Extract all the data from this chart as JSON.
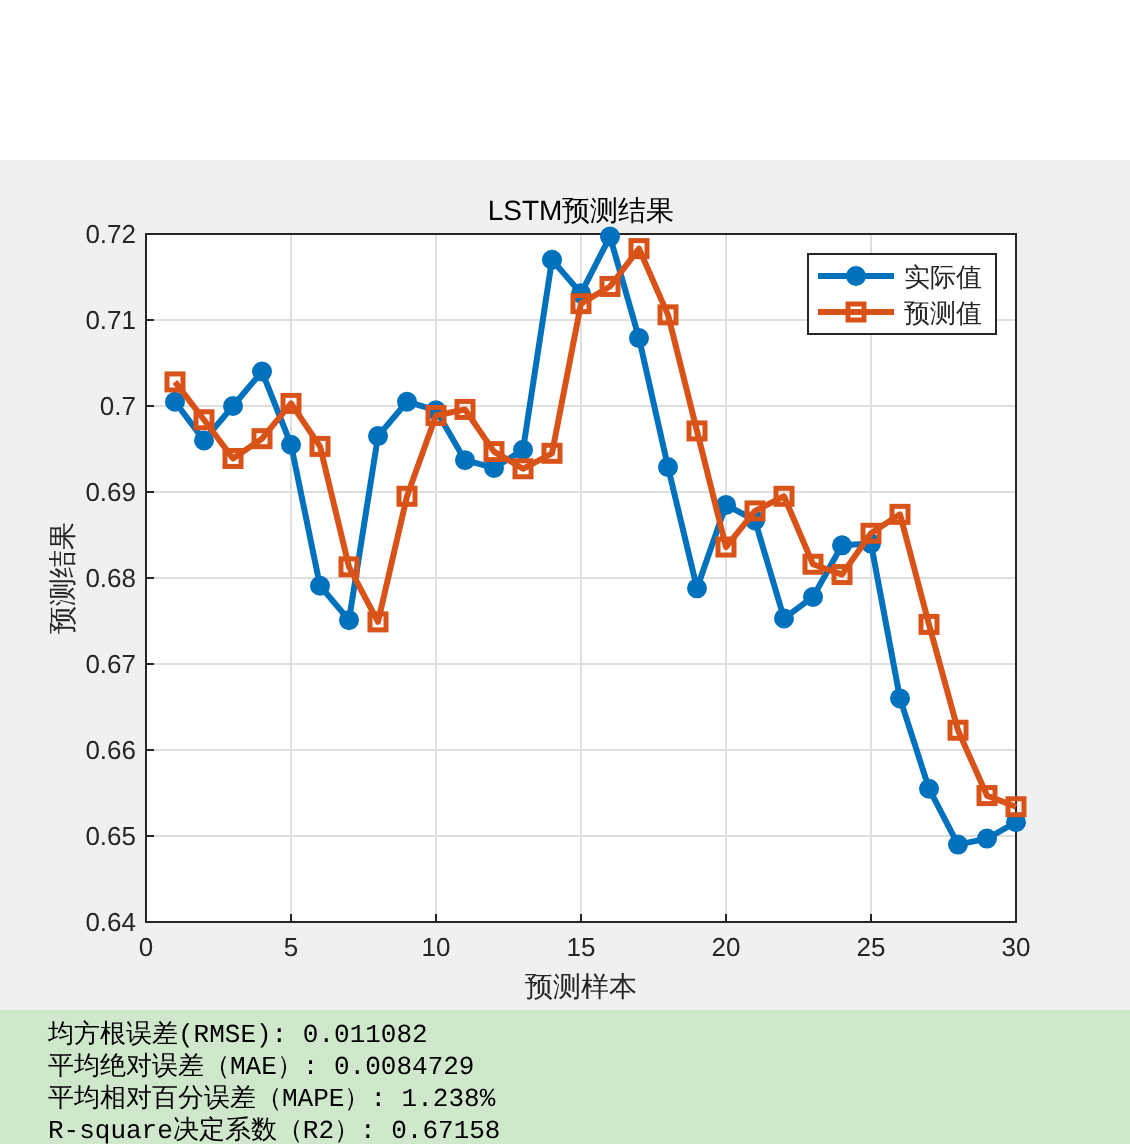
{
  "chart_data": {
    "type": "line",
    "title": "LSTM预测结果",
    "xlabel": "预测样本",
    "ylabel": "预测结果",
    "x": [
      1,
      2,
      3,
      4,
      5,
      6,
      7,
      8,
      9,
      10,
      11,
      12,
      13,
      14,
      15,
      16,
      17,
      18,
      19,
      20,
      21,
      22,
      23,
      24,
      25,
      26,
      27,
      28,
      29,
      30
    ],
    "series": [
      {
        "name": "实际值",
        "color": "#0072bd",
        "marker": "circle",
        "values": [
          0.7005,
          0.696,
          0.7,
          0.704,
          0.6955,
          0.6791,
          0.6751,
          0.6965,
          0.7005,
          0.6995,
          0.6937,
          0.6928,
          0.6949,
          0.717,
          0.7131,
          0.7197,
          0.7079,
          0.6929,
          0.6788,
          0.6885,
          0.6867,
          0.6753,
          0.6778,
          0.6838,
          0.684,
          0.666,
          0.6555,
          0.649,
          0.6497,
          0.6516
        ]
      },
      {
        "name": "预测值",
        "color": "#d95319",
        "marker": "square",
        "values": [
          0.7028,
          0.6984,
          0.6939,
          0.6962,
          0.7003,
          0.6953,
          0.6813,
          0.6749,
          0.6895,
          0.6989,
          0.6996,
          0.6947,
          0.6927,
          0.6945,
          0.7119,
          0.7139,
          0.7183,
          0.7106,
          0.6971,
          0.6836,
          0.6878,
          0.6895,
          0.6816,
          0.6804,
          0.6852,
          0.6874,
          0.6746,
          0.6623,
          0.6547,
          0.6534
        ]
      }
    ],
    "xlim": [
      0,
      30
    ],
    "ylim": [
      0.64,
      0.72
    ],
    "xticks": [
      0,
      5,
      10,
      15,
      20,
      25,
      30
    ],
    "yticks": [
      0.64,
      0.65,
      0.66,
      0.67,
      0.68,
      0.69,
      0.7,
      0.71,
      0.72
    ],
    "grid": true,
    "legend": "top right",
    "annotations": [
      "均方根误差(RMSE): 0.011082",
      "平均绝对误差（MAE）: 0.0084729",
      "平均相对百分误差（MAPE）: 1.238%",
      "R-square决定系数（R2）: 0.67158"
    ]
  }
}
